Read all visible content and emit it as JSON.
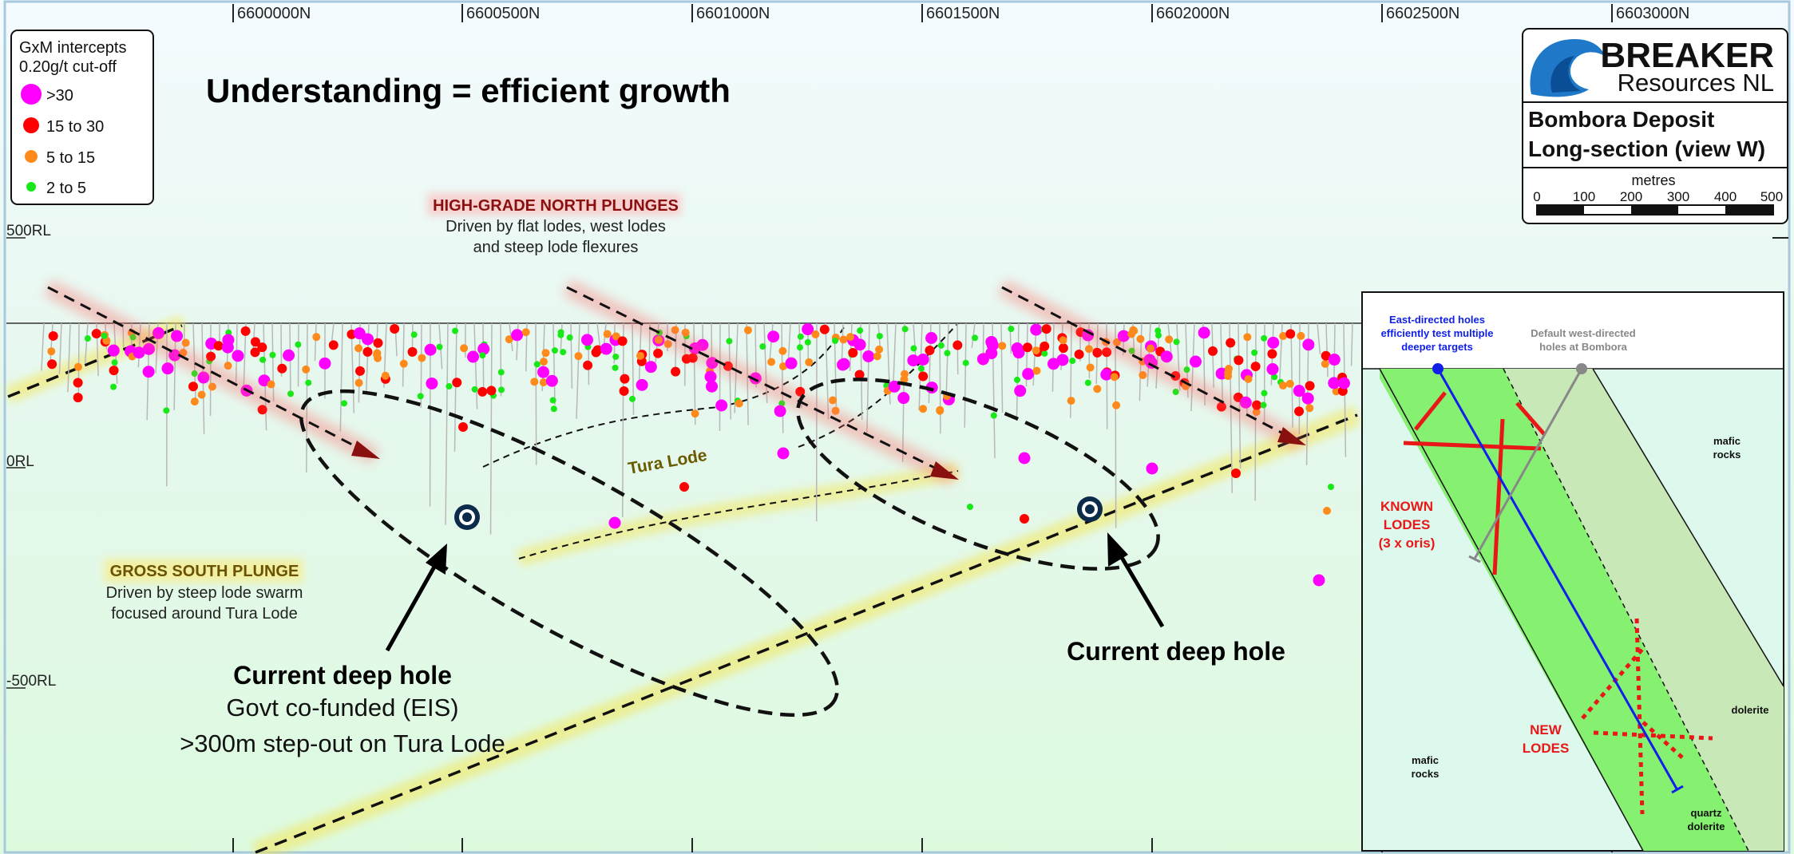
{
  "title": "Understanding = efficient growth",
  "northings": [
    "6600000N",
    "6600500N",
    "6601000N",
    "6601500N",
    "6602000N",
    "6602500N",
    "6603000N"
  ],
  "rl_labels": [
    "500RL",
    "0RL",
    "-500RL"
  ],
  "legend": {
    "title_line1": "GxM intercepts",
    "title_line2": "0.20g/t cut-off",
    "items": [
      {
        "label": ">30",
        "color": "#ff00ff"
      },
      {
        "label": "15 to 30",
        "color": "#ff0000"
      },
      {
        "label": "5 to 15",
        "color": "#ff8a1c"
      },
      {
        "label": "2 to 5",
        "color": "#18e818"
      }
    ]
  },
  "logo": {
    "line1": "BREAKER",
    "line2": "Resources NL",
    "deposit_line1": "Bombora Deposit",
    "deposit_line2": "Long-section (view W)"
  },
  "scale_bar": {
    "unit": "metres",
    "ticks": [
      "0",
      "100",
      "200",
      "300",
      "400",
      "500"
    ]
  },
  "north_plunge": {
    "heading": "HIGH-GRADE NORTH PLUNGES",
    "line1": "Driven by flat lodes, west lodes",
    "line2": "and steep lode flexures"
  },
  "south_plunge": {
    "heading": "GROSS SOUTH PLUNGE",
    "line1": "Driven by steep lode swarm",
    "line2": "focused around Tura Lode"
  },
  "tura_lode_label": "Tura Lode",
  "deep_hole_left": {
    "line1": "Current deep hole",
    "line2": "Govt co-funded (EIS)",
    "line3": ">300m step-out on Tura Lode"
  },
  "deep_hole_right": "Current deep hole",
  "inset": {
    "east_line1": "East-directed holes",
    "east_line2": "efficiently test multiple",
    "east_line3": "deeper targets",
    "west_line1": "Default west-directed",
    "west_line2": "holes at Bombora",
    "mafic_top_1": "mafic",
    "mafic_top_2": "rocks",
    "known_1": "KNOWN",
    "known_2": "LODES",
    "known_3": "(3 x oris)",
    "new_1": "NEW",
    "new_2": "LODES",
    "dolerite": "dolerite",
    "mafic_bottom_1": "mafic",
    "mafic_bottom_2": "rocks",
    "quartz_1": "quartz",
    "quartz_2": "dolerite"
  }
}
